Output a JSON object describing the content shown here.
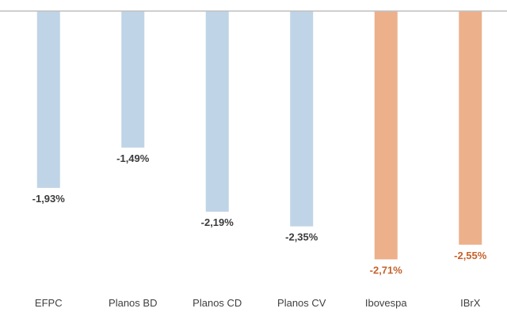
{
  "chart_data": {
    "type": "bar",
    "categories": [
      "EFPC",
      "Planos BD",
      "Planos CD",
      "Planos CV",
      "Ibovespa",
      "IBrX"
    ],
    "values": [
      -1.93,
      -1.49,
      -2.19,
      -2.35,
      -2.71,
      -2.55
    ],
    "data_labels": [
      "-1,93%",
      "-1,49%",
      "-2,19%",
      "-2,35%",
      "-2,71%",
      "-2,55%"
    ],
    "bar_colors": [
      "#c0d4e7",
      "#c0d4e7",
      "#c0d4e7",
      "#c0d4e7",
      "#ecb08b",
      "#ecb08b"
    ],
    "label_colors": [
      "#3b3b3b",
      "#3b3b3b",
      "#3b3b3b",
      "#3b3b3b",
      "#c5622b",
      "#c5622b"
    ],
    "axis_color": "#bfbfbf",
    "title": "",
    "xlabel": "",
    "ylabel": "",
    "ylim": [
      -2.8,
      0
    ],
    "grid": false,
    "legend": "none"
  }
}
